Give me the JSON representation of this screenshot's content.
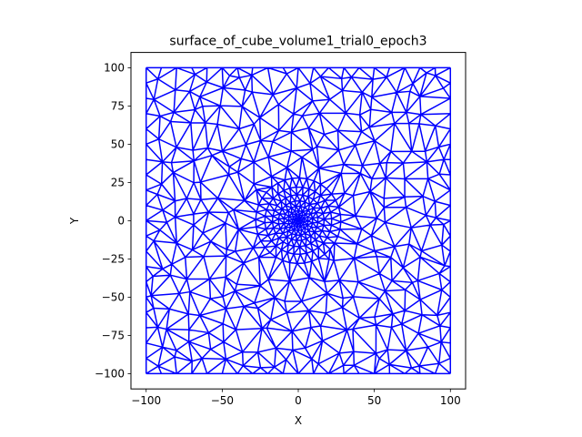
{
  "chart_data": {
    "type": "triangular mesh",
    "title": "surface_of_cube_volume1_trial0_epoch3",
    "xlabel": "X",
    "ylabel": "Y",
    "xlim": [
      -110,
      110
    ],
    "ylim": [
      -110,
      110
    ],
    "xticks": [
      -100,
      -50,
      0,
      50,
      100
    ],
    "yticks": [
      -100,
      -75,
      -50,
      -25,
      0,
      25,
      50,
      75,
      100
    ],
    "grid": false,
    "aspect": "equal",
    "line_color": "#0000ff",
    "domain": {
      "x": [
        -100,
        100
      ],
      "y": [
        -100,
        100
      ]
    },
    "mesh": {
      "boundary_divisions": 20,
      "refinement_center": [
        0,
        0
      ],
      "rings": [
        {
          "radius": 2,
          "points": 8
        },
        {
          "radius": 4,
          "points": 12
        },
        {
          "radius": 6.5,
          "points": 16
        },
        {
          "radius": 9.5,
          "points": 20
        },
        {
          "radius": 13,
          "points": 24
        },
        {
          "radius": 17,
          "points": 28
        },
        {
          "radius": 22,
          "points": 32
        },
        {
          "radius": 28,
          "points": 36
        }
      ],
      "background_spacing": 11
    }
  }
}
